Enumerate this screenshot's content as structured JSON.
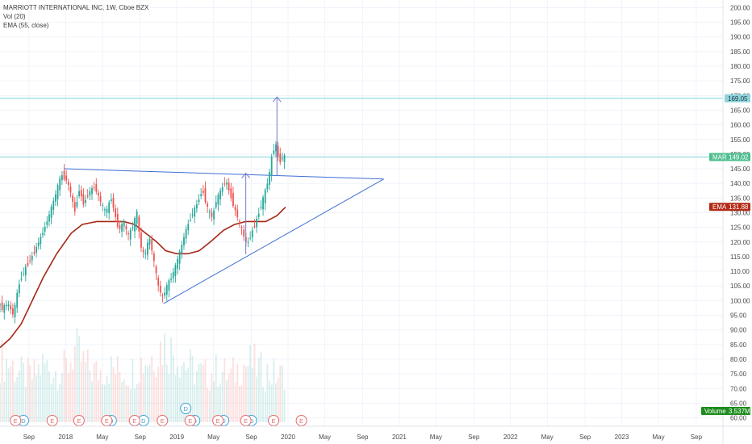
{
  "legend": {
    "title": "MARRIOTT INTERNATIONAL INC, 1W, Cboe BZX",
    "vol": "Vol (20)",
    "ema": "EMA (55, close)"
  },
  "colors": {
    "up": "#26a69a",
    "down": "#ef5350",
    "ema": "#a52714",
    "trendline": "#3d6fd4",
    "level": "#7fd2da",
    "mar_badge": "#4fbf8f",
    "ema_badge": "#b32b16",
    "target_badge": "#8fd3dc",
    "volume_badge": "#1e8c1e",
    "event_e": "#e36a6a",
    "event_d": "#3aa3d8"
  },
  "badges": {
    "target": "169.05",
    "mar_label": "MAR",
    "mar_value": "149.02",
    "ema_label": "EMA",
    "ema_value": "131.88",
    "volume_label": "Volume",
    "volume_value": "3.537M"
  },
  "events": {
    "earnings_letter": "E",
    "dividend_letter": "D",
    "earnings_dates": [
      2017.55,
      2017.88,
      2018.12,
      2018.37,
      2018.62,
      2018.87,
      2019.12,
      2019.37,
      2019.62,
      2019.87,
      2020.12
    ],
    "dividend_dates": [
      2017.62,
      2018.41,
      2018.7,
      2019.16,
      2019.42,
      2019.67
    ],
    "dividend_featured_date": 2019.08
  },
  "chart_data": {
    "type": "candlestick",
    "title": "MARRIOTT INTERNATIONAL INC, 1W, Cboe BZX",
    "y_ticks": [
      "200.00",
      "195.00",
      "190.00",
      "185.00",
      "180.00",
      "175.00",
      "170.00",
      "165.00",
      "160.00",
      "155.00",
      "150.00",
      "145.00",
      "140.00",
      "135.00",
      "130.00",
      "125.00",
      "120.00",
      "115.00",
      "110.00",
      "105.00",
      "100.00",
      "95.00",
      "90.00",
      "85.00",
      "80.00",
      "75.00",
      "70.00",
      "65.00",
      "60.00"
    ],
    "ylim": [
      58.5,
      201.5
    ],
    "x_ticks": [
      {
        "label": "Sep",
        "t": 2017.67
      },
      {
        "label": "2018",
        "t": 2018.0
      },
      {
        "label": "May",
        "t": 2018.33
      },
      {
        "label": "Sep",
        "t": 2018.67
      },
      {
        "label": "2019",
        "t": 2019.0
      },
      {
        "label": "May",
        "t": 2019.33
      },
      {
        "label": "Sep",
        "t": 2019.67
      },
      {
        "label": "2020",
        "t": 2020.0
      },
      {
        "label": "May",
        "t": 2020.33
      },
      {
        "label": "Sep",
        "t": 2020.67
      },
      {
        "label": "2021",
        "t": 2021.0
      },
      {
        "label": "May",
        "t": 2021.33
      },
      {
        "label": "Sep",
        "t": 2021.67
      },
      {
        "label": "2022",
        "t": 2022.0
      },
      {
        "label": "May",
        "t": 2022.33
      },
      {
        "label": "Sep",
        "t": 2022.67
      },
      {
        "label": "2023",
        "t": 2023.0
      },
      {
        "label": "May",
        "t": 2023.33
      },
      {
        "label": "Sep",
        "t": 2023.67
      }
    ],
    "xlim": [
      2017.41,
      2023.91
    ],
    "price_anchors": [
      [
        2017.41,
        106,
        100
      ],
      [
        2017.44,
        99,
        97
      ],
      [
        2017.5,
        101,
        99
      ],
      [
        2017.55,
        97,
        95
      ],
      [
        2017.59,
        101,
        104
      ],
      [
        2017.62,
        104,
        108
      ],
      [
        2017.67,
        108,
        112
      ],
      [
        2017.73,
        112,
        116
      ],
      [
        2017.8,
        117,
        122
      ],
      [
        2017.86,
        124,
        128
      ],
      [
        2017.92,
        130,
        135
      ],
      [
        2017.98,
        138,
        143
      ],
      [
        2018.03,
        144,
        141
      ],
      [
        2018.07,
        140,
        136
      ],
      [
        2018.1,
        136,
        130
      ],
      [
        2018.14,
        131,
        138
      ],
      [
        2018.18,
        138,
        133
      ],
      [
        2018.23,
        132,
        137
      ],
      [
        2018.28,
        137,
        139
      ],
      [
        2018.33,
        138,
        134
      ],
      [
        2018.38,
        134,
        130
      ],
      [
        2018.43,
        131,
        135
      ],
      [
        2018.47,
        135,
        128
      ],
      [
        2018.5,
        128,
        124
      ],
      [
        2018.54,
        124,
        127
      ],
      [
        2018.58,
        127,
        122
      ],
      [
        2018.62,
        122,
        125
      ],
      [
        2018.66,
        126,
        130
      ],
      [
        2018.69,
        129,
        119
      ],
      [
        2018.73,
        120,
        115
      ],
      [
        2018.77,
        116,
        122
      ],
      [
        2018.81,
        121,
        114
      ],
      [
        2018.85,
        114,
        105
      ],
      [
        2018.89,
        106,
        101
      ],
      [
        2018.93,
        101,
        105
      ],
      [
        2018.97,
        104,
        108
      ],
      [
        2019.01,
        108,
        112
      ],
      [
        2019.05,
        113,
        117
      ],
      [
        2019.1,
        118,
        124
      ],
      [
        2019.15,
        124,
        129
      ],
      [
        2019.2,
        129,
        133
      ],
      [
        2019.25,
        133,
        138
      ],
      [
        2019.29,
        137,
        132
      ],
      [
        2019.34,
        132,
        128
      ],
      [
        2019.37,
        128,
        134
      ],
      [
        2019.42,
        134,
        138
      ],
      [
        2019.46,
        138,
        141
      ],
      [
        2019.5,
        141,
        136
      ],
      [
        2019.54,
        136,
        131
      ],
      [
        2019.58,
        131,
        127
      ],
      [
        2019.62,
        127,
        122
      ],
      [
        2019.65,
        122,
        119
      ],
      [
        2019.7,
        119,
        124
      ],
      [
        2019.74,
        124,
        128
      ],
      [
        2019.78,
        128,
        133
      ],
      [
        2019.82,
        133,
        138
      ],
      [
        2019.85,
        138,
        143
      ],
      [
        2019.88,
        143,
        151
      ],
      [
        2019.91,
        151,
        153
      ],
      [
        2019.94,
        152,
        147
      ],
      [
        2019.97,
        146,
        149
      ]
    ],
    "ema_anchors": [
      [
        2017.41,
        84
      ],
      [
        2017.5,
        87
      ],
      [
        2017.6,
        92
      ],
      [
        2017.7,
        100
      ],
      [
        2017.8,
        108
      ],
      [
        2017.92,
        116
      ],
      [
        2018.05,
        123
      ],
      [
        2018.15,
        126
      ],
      [
        2018.28,
        127
      ],
      [
        2018.4,
        127
      ],
      [
        2018.52,
        127
      ],
      [
        2018.62,
        126
      ],
      [
        2018.72,
        123
      ],
      [
        2018.82,
        120
      ],
      [
        2018.9,
        117
      ],
      [
        2019.0,
        116
      ],
      [
        2019.1,
        116
      ],
      [
        2019.2,
        117
      ],
      [
        2019.3,
        120
      ],
      [
        2019.42,
        124
      ],
      [
        2019.52,
        126
      ],
      [
        2019.62,
        127
      ],
      [
        2019.72,
        127
      ],
      [
        2019.8,
        127
      ],
      [
        2019.9,
        129
      ],
      [
        2019.98,
        132
      ]
    ],
    "trendlines": [
      {
        "name": "resistance",
        "t1": 2017.99,
        "v1": 145.0,
        "t2": 2020.86,
        "v2": 141.5
      },
      {
        "name": "support",
        "t1": 2018.88,
        "v1": 99.0,
        "t2": 2020.86,
        "v2": 141.5
      }
    ],
    "horizontal_levels": [
      169.05,
      149.02
    ],
    "arrows": [
      {
        "t": 2019.62,
        "from": 115.8,
        "to": 143.5
      },
      {
        "t": 2019.9,
        "from": 142.5,
        "to": 169.5
      }
    ],
    "volume_millions_anchors": [
      [
        2017.41,
        4.2
      ],
      [
        2017.5,
        3.9
      ],
      [
        2017.6,
        3.2
      ],
      [
        2017.7,
        3.0
      ],
      [
        2017.8,
        3.8
      ],
      [
        2017.9,
        3.4
      ],
      [
        2018.0,
        3.5
      ],
      [
        2018.08,
        4.8
      ],
      [
        2018.18,
        3.7
      ],
      [
        2018.28,
        3.3
      ],
      [
        2018.38,
        3.6
      ],
      [
        2018.48,
        3.4
      ],
      [
        2018.58,
        3.2
      ],
      [
        2018.68,
        4.0
      ],
      [
        2018.78,
        4.4
      ],
      [
        2018.88,
        5.2
      ],
      [
        2018.98,
        4.6
      ],
      [
        2019.08,
        3.9
      ],
      [
        2019.18,
        3.3
      ],
      [
        2019.28,
        3.1
      ],
      [
        2019.38,
        3.5
      ],
      [
        2019.48,
        3.0
      ],
      [
        2019.58,
        3.8
      ],
      [
        2019.68,
        3.9
      ],
      [
        2019.78,
        3.3
      ],
      [
        2019.86,
        3.2
      ],
      [
        2019.94,
        3.0
      ],
      [
        2019.98,
        3.54
      ]
    ],
    "volume_max_millions": 7.2
  }
}
